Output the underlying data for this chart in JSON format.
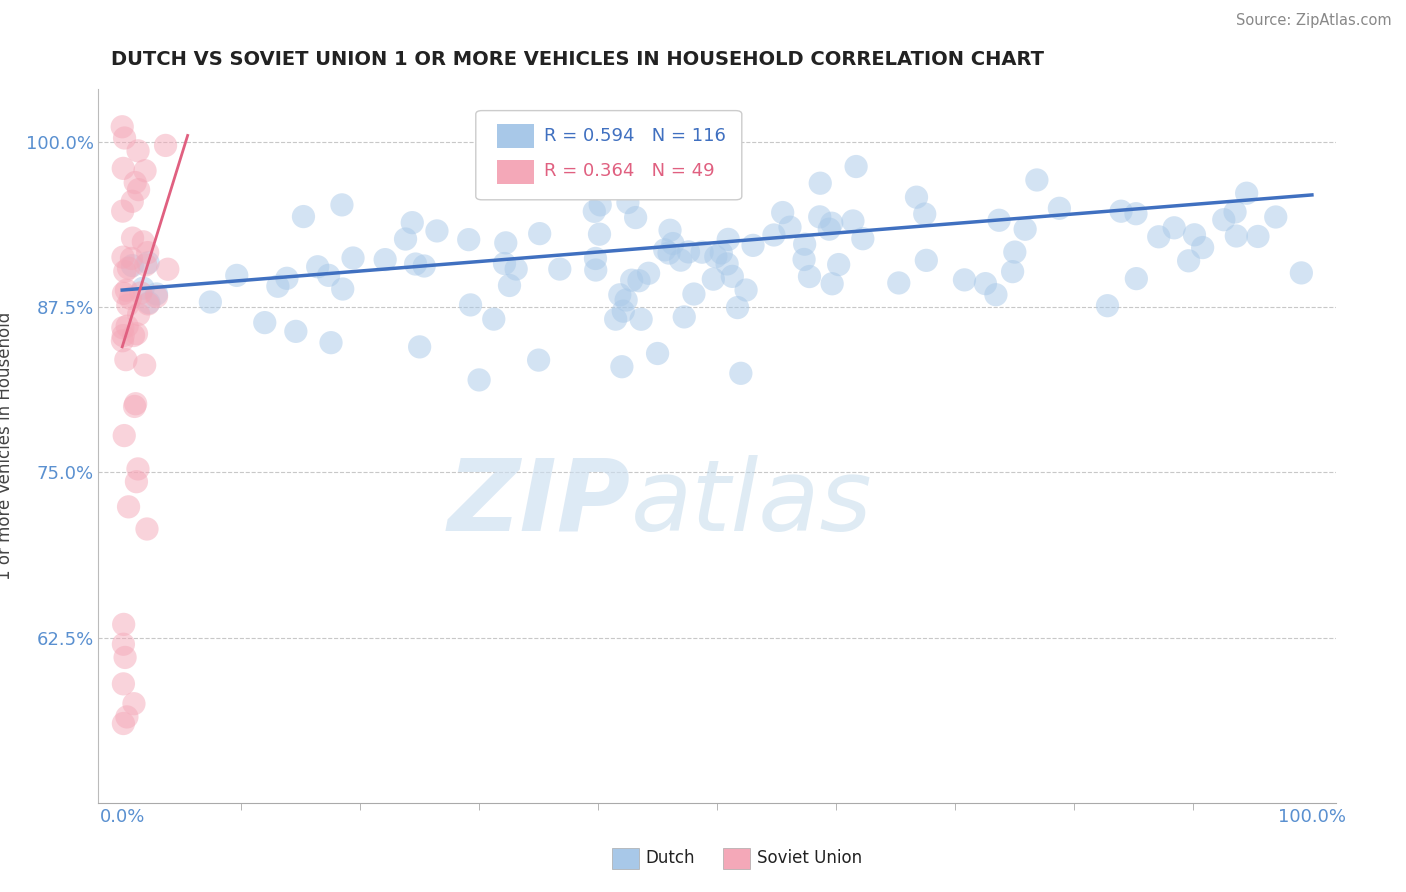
{
  "title": "DUTCH VS SOVIET UNION 1 OR MORE VEHICLES IN HOUSEHOLD CORRELATION CHART",
  "source_text": "Source: ZipAtlas.com",
  "ylabel": "1 or more Vehicles in Household",
  "xlim": [
    -0.02,
    1.02
  ],
  "ylim": [
    0.5,
    1.04
  ],
  "yticks": [
    0.625,
    0.75,
    0.875,
    1.0
  ],
  "ytick_labels": [
    "62.5%",
    "75.0%",
    "87.5%",
    "100.0%"
  ],
  "xtick_labels": [
    "0.0%",
    "100.0%"
  ],
  "xticks": [
    0.0,
    1.0
  ],
  "blue_R": 0.594,
  "blue_N": 116,
  "pink_R": 0.364,
  "pink_N": 49,
  "blue_color": "#a8c8e8",
  "pink_color": "#f4a8b8",
  "blue_line_color": "#4070c0",
  "pink_line_color": "#e06080",
  "legend_blue_label": "Dutch",
  "legend_pink_label": "Soviet Union",
  "watermark_zip": "ZIP",
  "watermark_atlas": "atlas",
  "background_color": "#ffffff",
  "grid_color": "#c8c8c8",
  "title_color": "#222222",
  "tick_label_color": "#5a90d0",
  "ylabel_color": "#444444"
}
